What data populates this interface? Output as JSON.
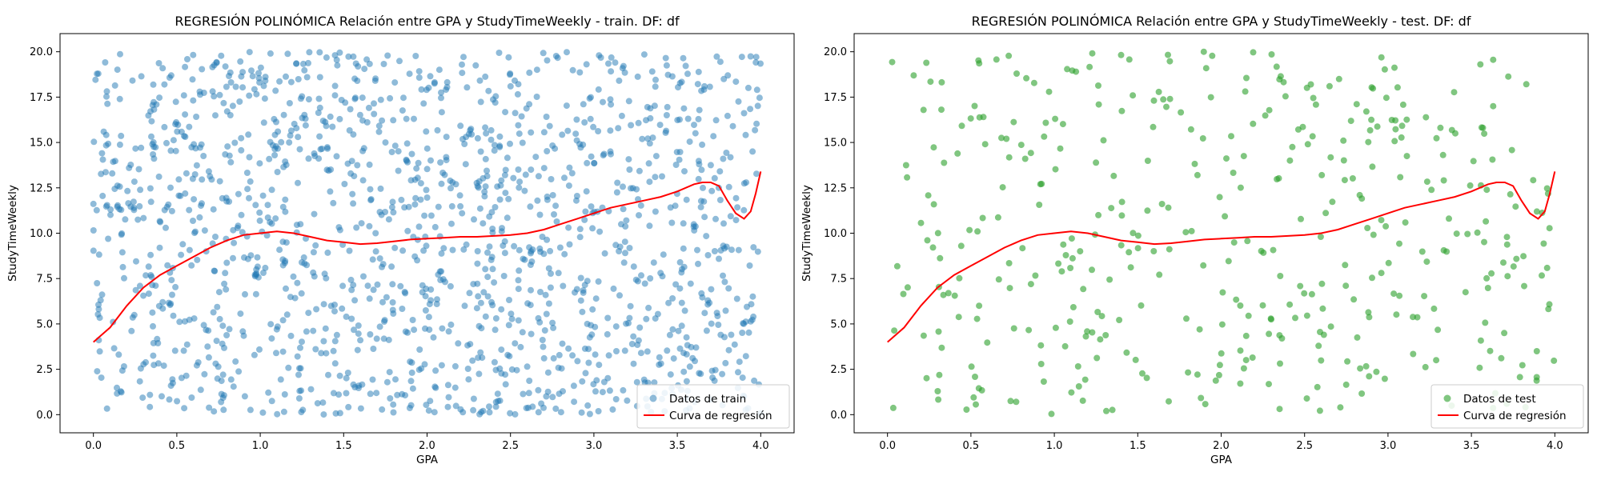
{
  "chart_data": [
    {
      "type": "scatter",
      "title": "REGRESIÓN POLINÓMICA Relación entre GPA y StudyTimeWeekly - train. DF: df",
      "xlabel": "GPA",
      "ylabel": "StudyTimeWeekly",
      "xlim": [
        -0.2,
        4.2
      ],
      "ylim": [
        -1.0,
        21.0
      ],
      "xticks": [
        0.0,
        0.5,
        1.0,
        1.5,
        2.0,
        2.5,
        3.0,
        3.5,
        4.0
      ],
      "xtick_labels": [
        "0.0",
        "0.5",
        "1.0",
        "1.5",
        "2.0",
        "2.5",
        "3.0",
        "3.5",
        "4.0"
      ],
      "yticks": [
        0.0,
        2.5,
        5.0,
        7.5,
        10.0,
        12.5,
        15.0,
        17.5,
        20.0
      ],
      "ytick_labels": [
        "0.0",
        "2.5",
        "5.0",
        "7.5",
        "10.0",
        "12.5",
        "15.0",
        "17.5",
        "20.0"
      ],
      "grid": false,
      "legend_position": "bottom-right",
      "series": [
        {
          "name": "Datos de train",
          "kind": "scatter",
          "color": "#1f77b4",
          "opacity": 0.5,
          "point_count": 1500,
          "x_range": [
            0.0,
            4.0
          ],
          "y_range": [
            0.0,
            20.0
          ]
        },
        {
          "name": "Curva de regresión",
          "kind": "line",
          "color": "#ff0000",
          "x": [
            0.0,
            0.1,
            0.2,
            0.3,
            0.4,
            0.5,
            0.6,
            0.7,
            0.8,
            0.9,
            1.0,
            1.1,
            1.2,
            1.3,
            1.4,
            1.5,
            1.6,
            1.7,
            1.8,
            1.9,
            2.0,
            2.1,
            2.2,
            2.3,
            2.4,
            2.5,
            2.6,
            2.7,
            2.8,
            2.9,
            3.0,
            3.1,
            3.2,
            3.3,
            3.4,
            3.5,
            3.6,
            3.65,
            3.7,
            3.75,
            3.8,
            3.85,
            3.9,
            3.94,
            3.97,
            4.0
          ],
          "y": [
            4.0,
            4.8,
            6.0,
            7.0,
            7.7,
            8.2,
            8.7,
            9.2,
            9.6,
            9.9,
            10.0,
            10.1,
            10.0,
            9.8,
            9.6,
            9.5,
            9.4,
            9.45,
            9.55,
            9.65,
            9.7,
            9.75,
            9.8,
            9.8,
            9.85,
            9.9,
            10.0,
            10.2,
            10.5,
            10.8,
            11.1,
            11.4,
            11.6,
            11.8,
            12.0,
            12.3,
            12.7,
            12.8,
            12.8,
            12.6,
            11.8,
            11.1,
            10.8,
            11.2,
            12.2,
            13.4
          ]
        }
      ]
    },
    {
      "type": "scatter",
      "title": "REGRESIÓN POLINÓMICA Relación entre GPA y StudyTimeWeekly - test. DF: df",
      "xlabel": "GPA",
      "ylabel": "StudyTimeWeekly",
      "xlim": [
        -0.2,
        4.2
      ],
      "ylim": [
        -1.0,
        21.0
      ],
      "xticks": [
        0.0,
        0.5,
        1.0,
        1.5,
        2.0,
        2.5,
        3.0,
        3.5,
        4.0
      ],
      "xtick_labels": [
        "0.0",
        "0.5",
        "1.0",
        "1.5",
        "2.0",
        "2.5",
        "3.0",
        "3.5",
        "4.0"
      ],
      "yticks": [
        0.0,
        2.5,
        5.0,
        7.5,
        10.0,
        12.5,
        15.0,
        17.5,
        20.0
      ],
      "ytick_labels": [
        "0.0",
        "2.5",
        "5.0",
        "7.5",
        "10.0",
        "12.5",
        "15.0",
        "17.5",
        "20.0"
      ],
      "grid": false,
      "legend_position": "bottom-right",
      "series": [
        {
          "name": "Datos de test",
          "kind": "scatter",
          "color": "#2ca02c",
          "opacity": 0.6,
          "point_count": 420,
          "x_range": [
            0.0,
            4.0
          ],
          "y_range": [
            0.0,
            20.0
          ]
        },
        {
          "name": "Curva de regresión",
          "kind": "line",
          "color": "#ff0000",
          "x": [
            0.0,
            0.1,
            0.2,
            0.3,
            0.4,
            0.5,
            0.6,
            0.7,
            0.8,
            0.9,
            1.0,
            1.1,
            1.2,
            1.3,
            1.4,
            1.5,
            1.6,
            1.7,
            1.8,
            1.9,
            2.0,
            2.1,
            2.2,
            2.3,
            2.4,
            2.5,
            2.6,
            2.7,
            2.8,
            2.9,
            3.0,
            3.1,
            3.2,
            3.3,
            3.4,
            3.5,
            3.6,
            3.65,
            3.7,
            3.75,
            3.8,
            3.85,
            3.9,
            3.94,
            3.97,
            4.0
          ],
          "y": [
            4.0,
            4.8,
            6.0,
            7.0,
            7.7,
            8.2,
            8.7,
            9.2,
            9.6,
            9.9,
            10.0,
            10.1,
            10.0,
            9.8,
            9.6,
            9.5,
            9.4,
            9.45,
            9.55,
            9.65,
            9.7,
            9.75,
            9.8,
            9.8,
            9.85,
            9.9,
            10.0,
            10.2,
            10.5,
            10.8,
            11.1,
            11.4,
            11.6,
            11.8,
            12.0,
            12.3,
            12.7,
            12.8,
            12.8,
            12.6,
            11.8,
            11.1,
            10.8,
            11.2,
            12.2,
            13.4
          ]
        }
      ]
    }
  ]
}
